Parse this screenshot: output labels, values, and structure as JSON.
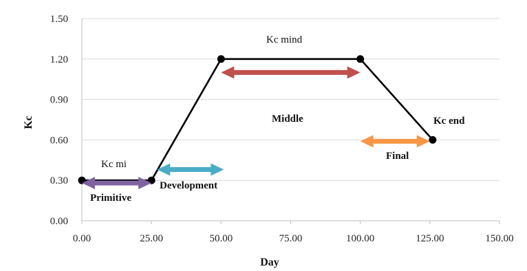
{
  "chart_data": {
    "type": "line",
    "xlabel": "Day",
    "ylabel": "Kc",
    "xlim": [
      0,
      150
    ],
    "ylim": [
      0,
      1.5
    ],
    "x_ticks": [
      "0.00",
      "25.00",
      "50.00",
      "75.00",
      "100.00",
      "125.00",
      "150.00"
    ],
    "y_ticks": [
      "0.00",
      "0.30",
      "0.60",
      "0.90",
      "1.20",
      "1.50"
    ],
    "grid": "horizontal",
    "series": [
      {
        "x": [
          0,
          25,
          50,
          100,
          126
        ],
        "y": [
          0.3,
          0.3,
          1.2,
          1.2,
          0.6
        ],
        "color": "#000000"
      }
    ],
    "stages": [
      {
        "label": "Primitive",
        "x_start": 0,
        "x_end": 25,
        "y": 0.28,
        "color": "#8064a2"
      },
      {
        "label": "Development",
        "x_start": 27,
        "x_end": 51,
        "y": 0.38,
        "color": "#4bacc6"
      },
      {
        "label": "Middle",
        "x_start": 50,
        "x_end": 100,
        "y": 1.1,
        "color": "#c0504d"
      },
      {
        "label": "Final",
        "x_start": 100,
        "x_end": 125,
        "y": 0.59,
        "color": "#f79646"
      }
    ],
    "annotations": [
      "Kc mi",
      "Kc mind",
      "Kc end"
    ]
  }
}
